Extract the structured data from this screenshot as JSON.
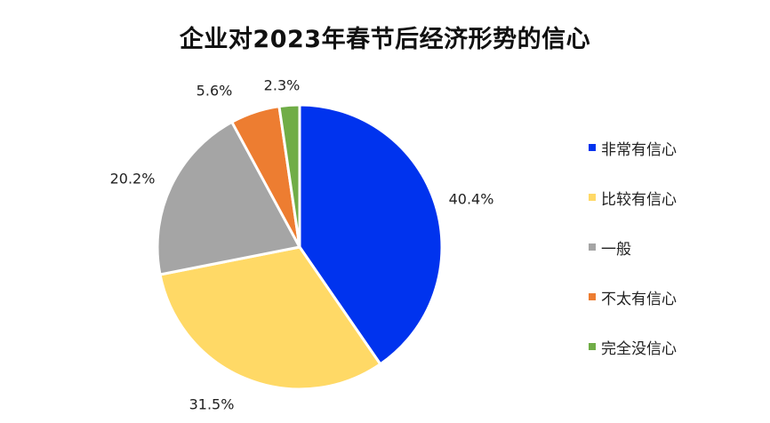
{
  "chart_data": {
    "type": "pie",
    "title": "企业对2023年春节后经济形势的信心",
    "slices": [
      {
        "label": "非常有信心",
        "value": 40.4,
        "display": "40.4%",
        "color": "#0033EE"
      },
      {
        "label": "比较有信心",
        "value": 31.5,
        "display": "31.5%",
        "color": "#FFD966"
      },
      {
        "label": "一般",
        "value": 20.2,
        "display": "20.2%",
        "color": "#A5A5A5"
      },
      {
        "label": "不太有信心",
        "value": 5.6,
        "display": "5.6%",
        "color": "#ED7D31"
      },
      {
        "label": "完全没信心",
        "value": 2.3,
        "display": "2.3%",
        "color": "#70AD47"
      }
    ],
    "legend_position": "right"
  }
}
